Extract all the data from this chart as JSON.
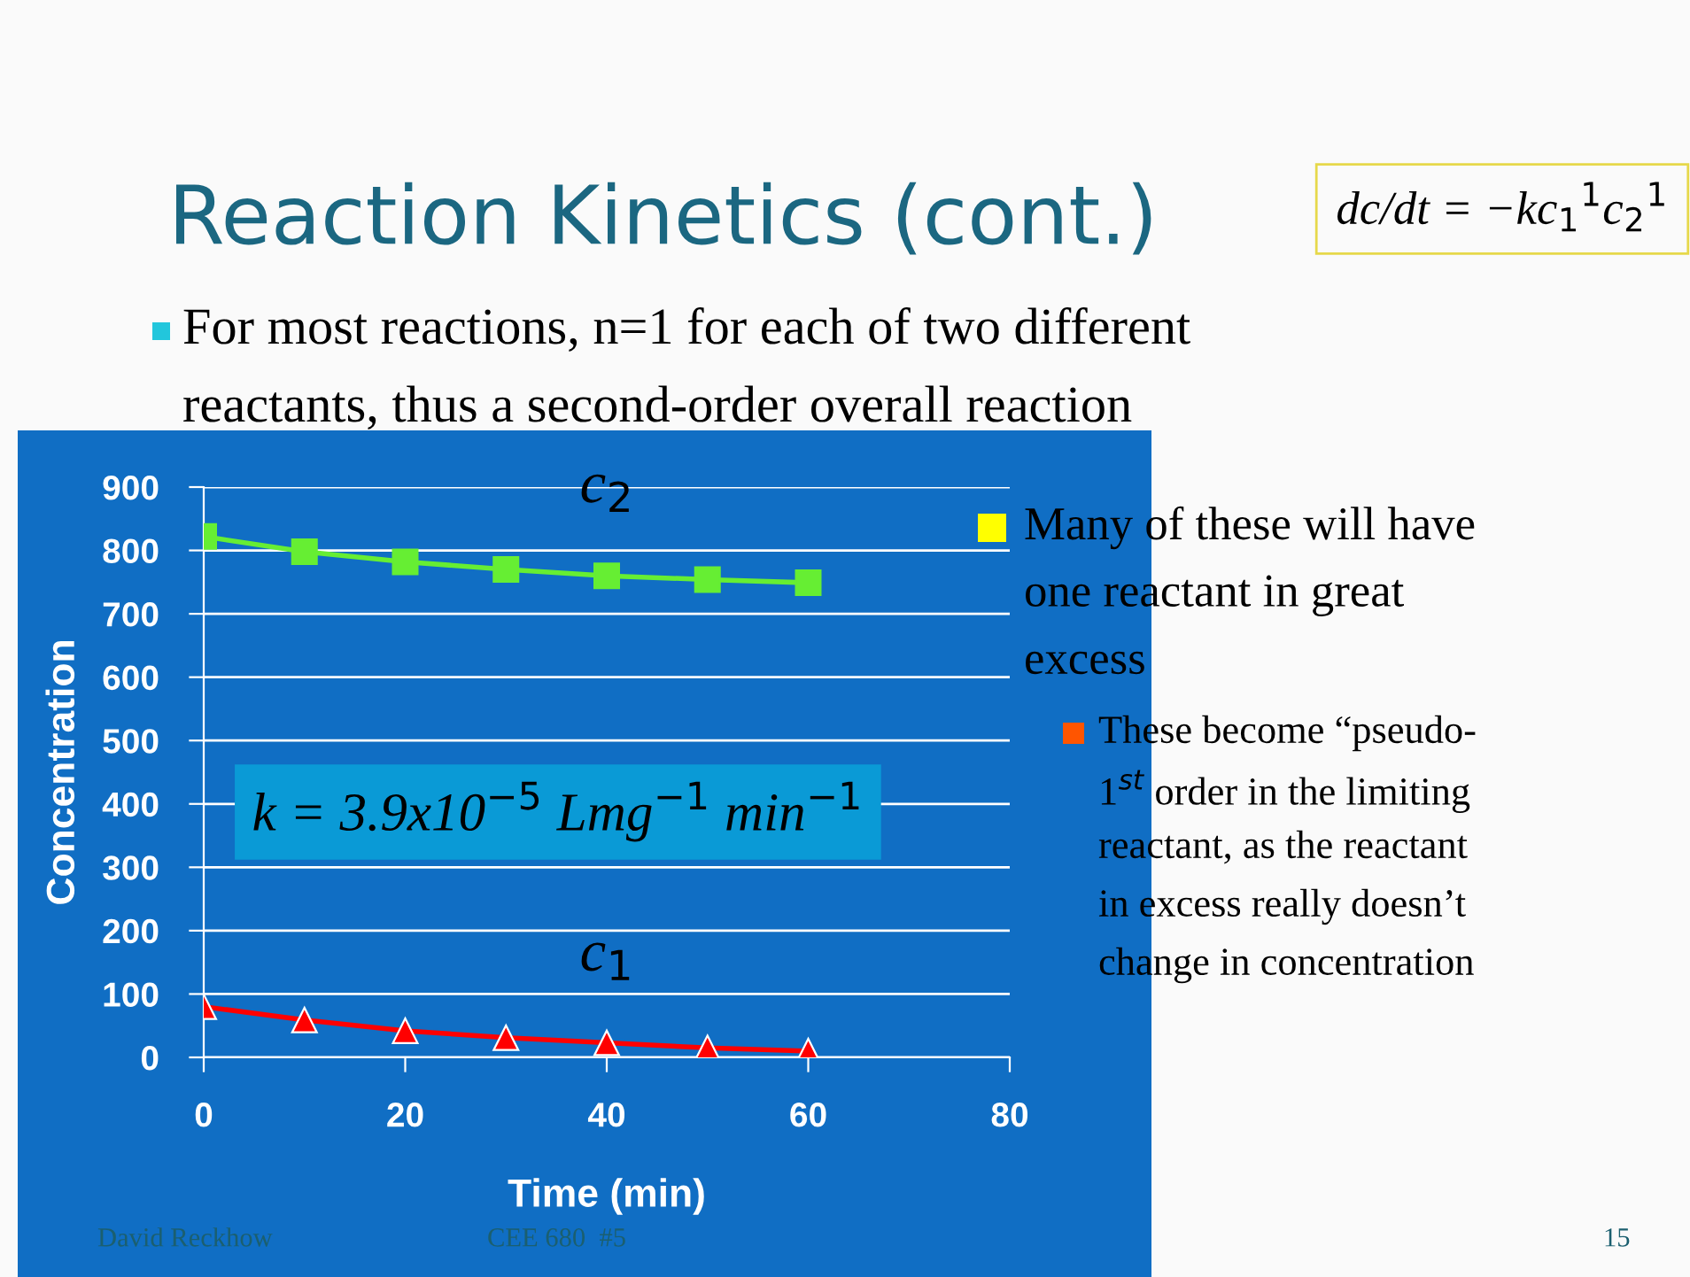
{
  "chart_data": {
    "type": "line",
    "title": "Reaction Kinetics (cont.)",
    "xlabel": "Time (min)",
    "ylabel": "Concentration",
    "x": [
      0,
      10,
      20,
      30,
      40,
      50,
      60
    ],
    "series": [
      {
        "name": "c$_{2}$",
        "color": "#66ee33",
        "marker": "square",
        "values": [
          822,
          798,
          782,
          770,
          760,
          754,
          749
        ]
      },
      {
        "name": "c$_{1}$",
        "color": "#ff0000",
        "marker": "triangle",
        "values": [
          80,
          59,
          42,
          31,
          23,
          15,
          10
        ]
      }
    ],
    "xlim": [
      0,
      80
    ],
    "xticks": [
      0,
      20,
      40,
      60,
      80
    ],
    "ylim": [
      0,
      900
    ],
    "yticks": [
      0,
      100,
      200,
      300,
      400,
      500,
      600,
      700,
      800,
      900
    ],
    "grid": "y",
    "legend": false,
    "line_style": "solid",
    "annotations": [
      "dc/dt = −kc$_{1}$$^{1}$c$_{2}$$^{1}$",
      "For most reactions, n=1 for each of two different",
      "reactants, thus a second-order overall reaction",
      "k = 3.9x10$^{−5}$ Lmg$^{−1}$ min$^{−1}$",
      "Many of these will have",
      "one reactant in great",
      "excess",
      "These become “pseudo-",
      "1$^{st}$ order in the limiting",
      "reactant, as the reactant",
      "in excess really doesn’t",
      "change in concentration",
      "David Reckhow",
      "CEE 680  #5",
      "15"
    ]
  }
}
